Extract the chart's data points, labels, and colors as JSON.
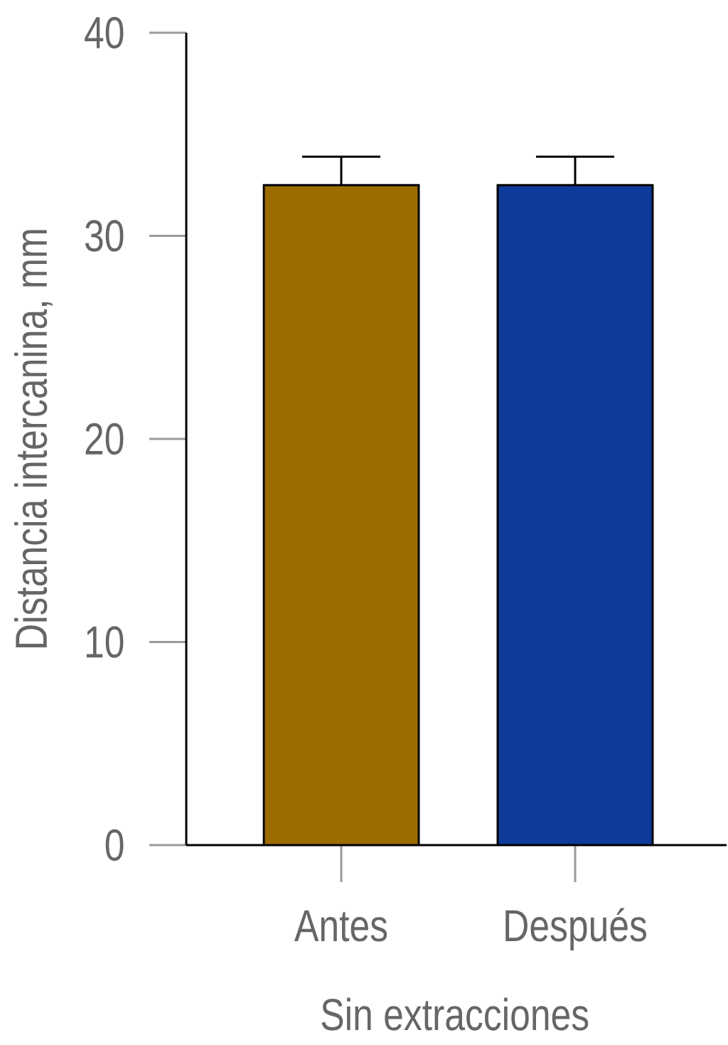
{
  "chart_data": {
    "type": "bar",
    "xlabel": "Sin extracciones",
    "ylabel": "Distancia intercanina, mm",
    "categories": [
      "Antes",
      "Después"
    ],
    "values": [
      32.5,
      32.5
    ],
    "colors": [
      "#9b6c00",
      "#0e3b9a"
    ],
    "errors": [
      [
        32.5,
        33.9
      ],
      [
        32.5,
        33.9
      ]
    ],
    "ylim": [
      0,
      40
    ],
    "yticks": [
      0,
      10,
      20,
      30,
      40
    ]
  }
}
